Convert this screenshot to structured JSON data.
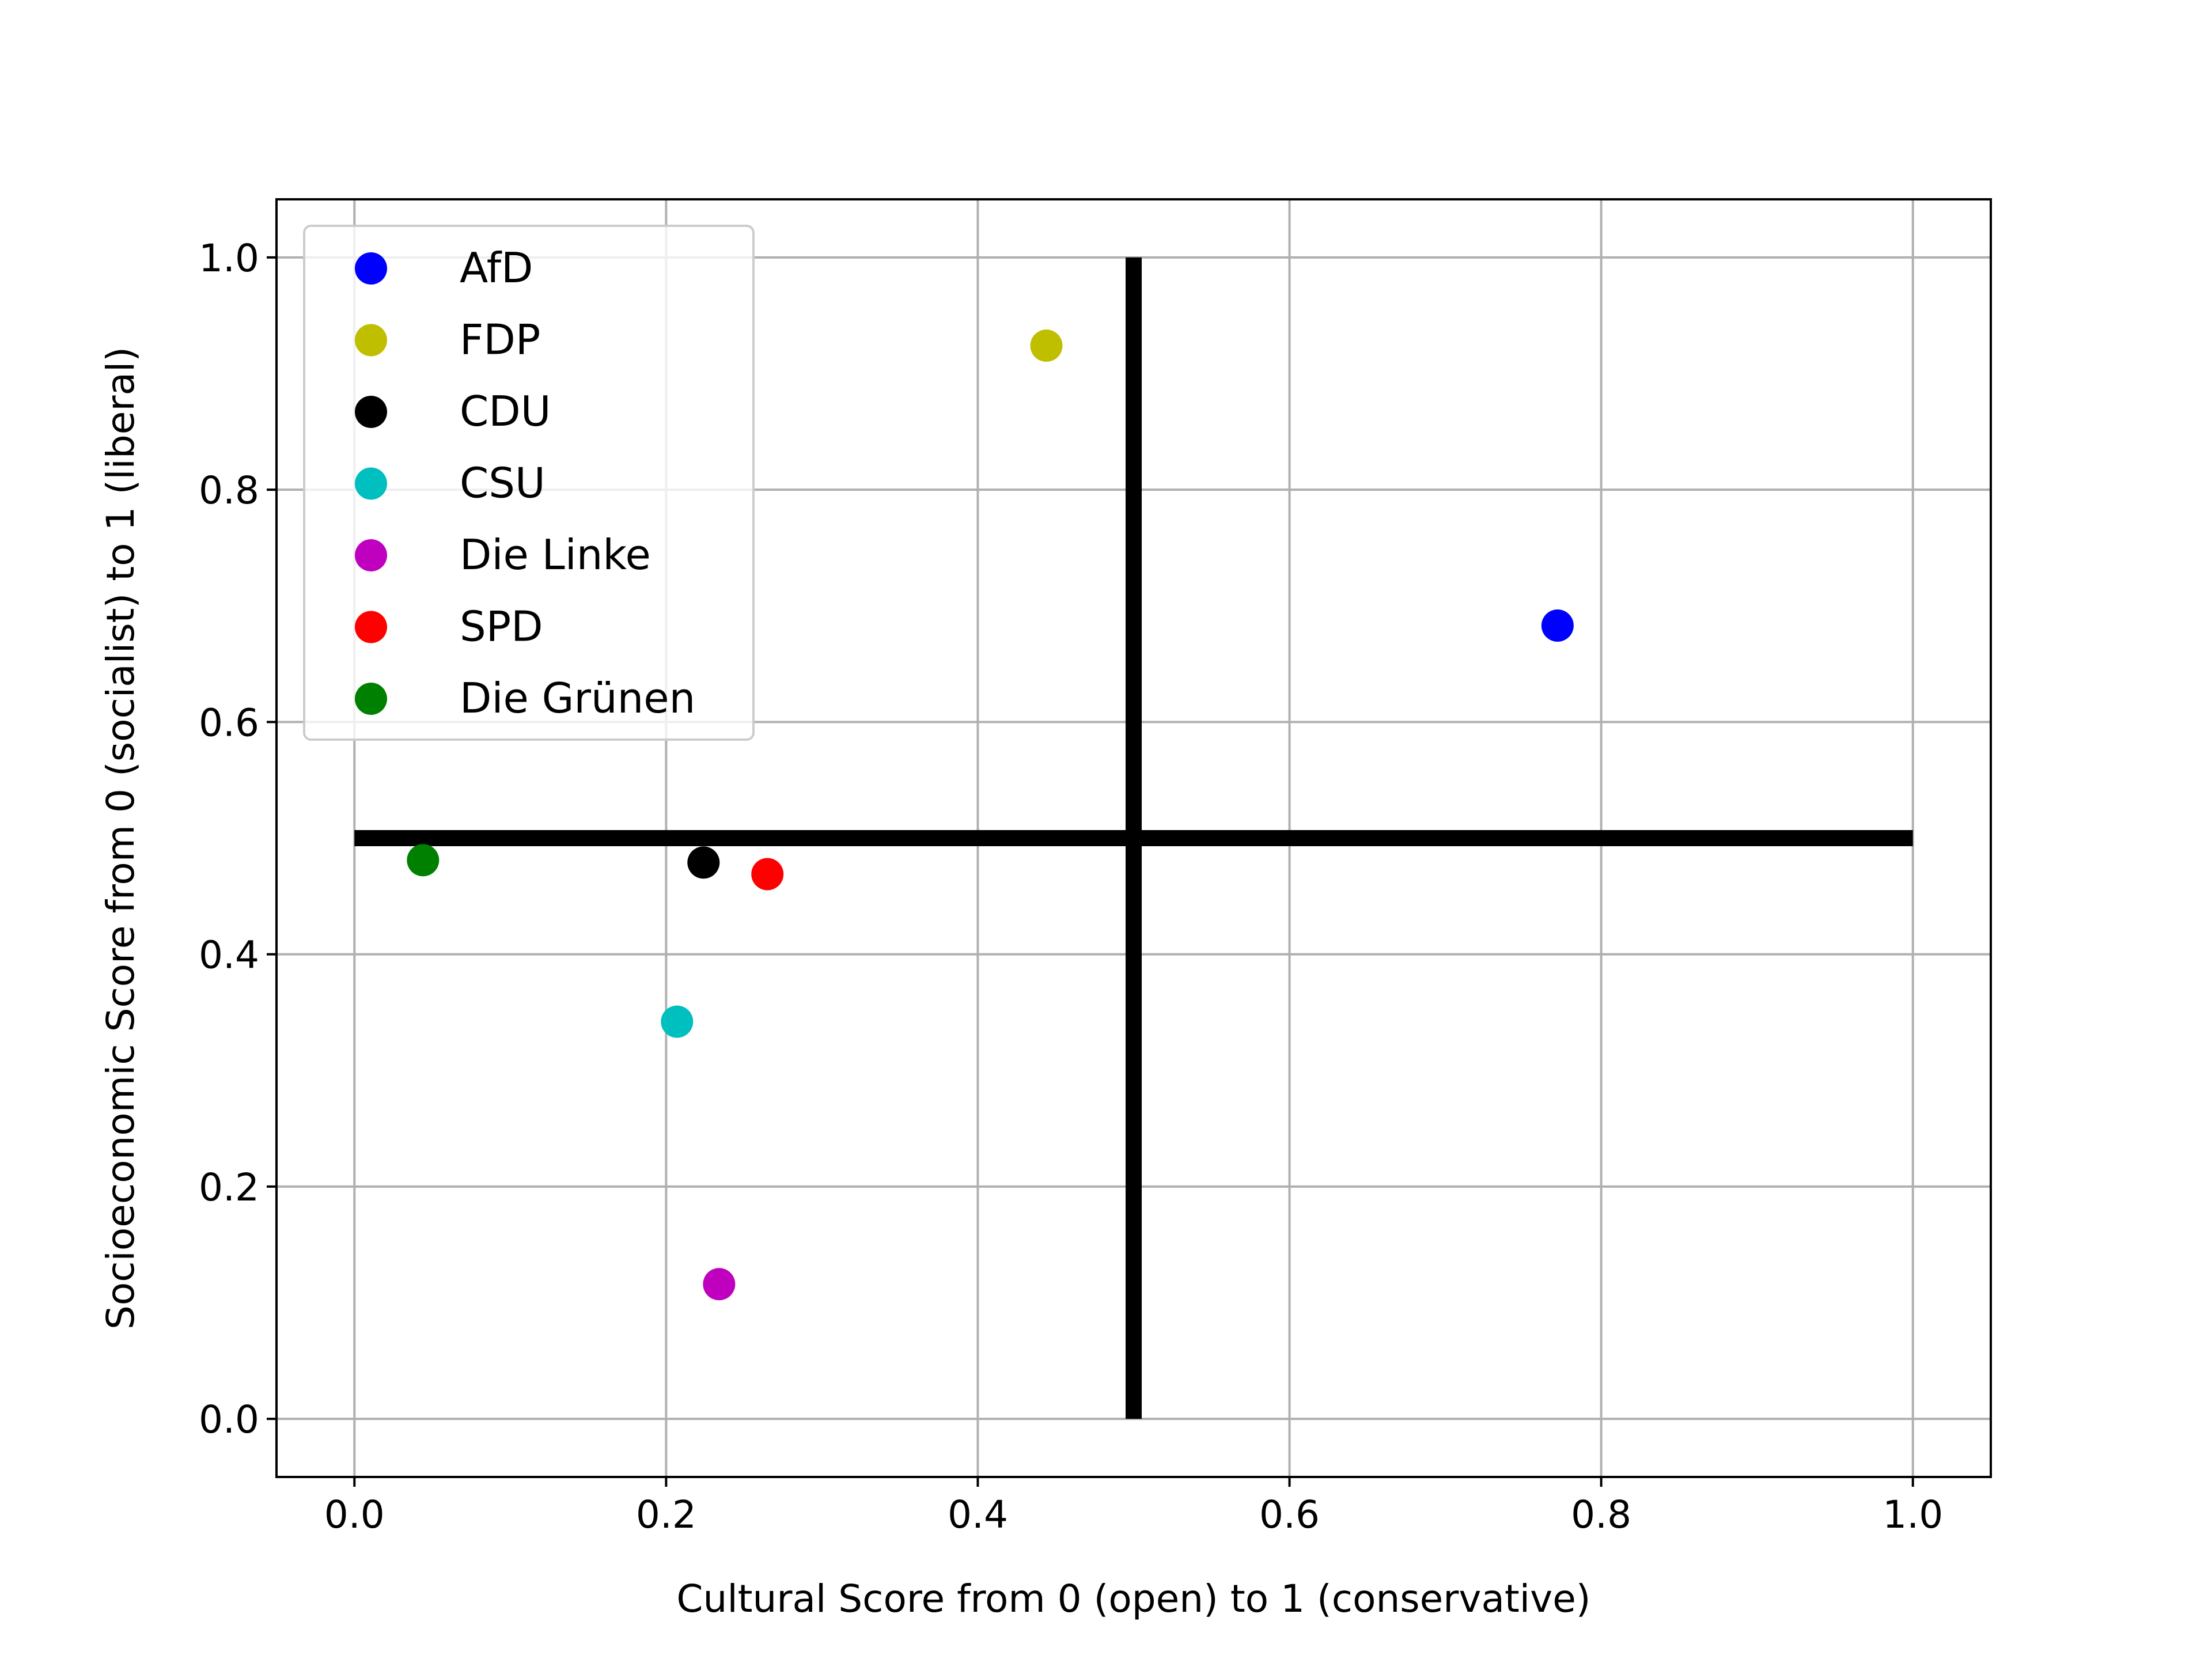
{
  "chart_data": {
    "type": "scatter",
    "xlabel": "Cultural Score from 0 (open) to 1 (conservative)",
    "ylabel": "Socioeconomic Score from 0 (socialist) to 1 (liberal)",
    "xlim": [
      -0.05,
      1.05
    ],
    "ylim": [
      -0.05,
      1.05
    ],
    "xticks": [
      0.0,
      0.2,
      0.4,
      0.6,
      0.8,
      1.0
    ],
    "xtick_labels": [
      "0.0",
      "0.2",
      "0.4",
      "0.6",
      "0.8",
      "1.0"
    ],
    "yticks": [
      0.0,
      0.2,
      0.4,
      0.6,
      0.8,
      1.0
    ],
    "ytick_labels": [
      "0.0",
      "0.2",
      "0.4",
      "0.6",
      "0.8",
      "1.0"
    ],
    "grid": true,
    "legend_position": "top-left",
    "series": [
      {
        "name": "AfD",
        "color": "#0000ff",
        "x": [
          0.772
        ],
        "y": [
          0.683
        ]
      },
      {
        "name": "FDP",
        "color": "#bfbf00",
        "x": [
          0.444
        ],
        "y": [
          0.924
        ]
      },
      {
        "name": "CDU",
        "color": "#000000",
        "x": [
          0.224
        ],
        "y": [
          0.479
        ]
      },
      {
        "name": "CSU",
        "color": "#00bfbf",
        "x": [
          0.207
        ],
        "y": [
          0.342
        ]
      },
      {
        "name": "Die Linke",
        "color": "#bf00bf",
        "x": [
          0.234
        ],
        "y": [
          0.116
        ]
      },
      {
        "name": "SPD",
        "color": "#ff0000",
        "x": [
          0.265
        ],
        "y": [
          0.469
        ]
      },
      {
        "name": "Die Grünen",
        "color": "#008000",
        "x": [
          0.044
        ],
        "y": [
          0.481
        ]
      }
    ],
    "reference_lines": [
      {
        "orientation": "horizontal",
        "value": 0.5,
        "from": 0.0,
        "to": 1.0,
        "color": "#000000"
      },
      {
        "orientation": "vertical",
        "value": 0.5,
        "from": 0.0,
        "to": 1.0,
        "color": "#000000"
      }
    ]
  }
}
